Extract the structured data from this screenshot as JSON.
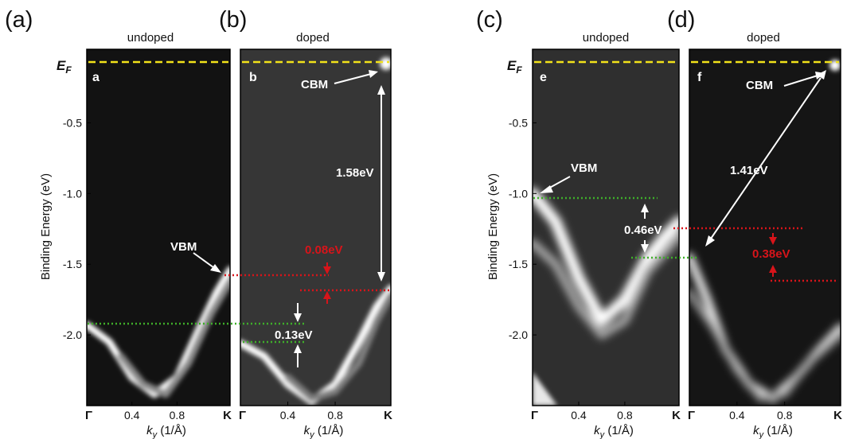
{
  "figure": {
    "panel_labels": [
      "(a)",
      "(b)",
      "(c)",
      "(d)"
    ],
    "ylabel": "Binding Energy (eV)",
    "ef_label": "E",
    "ef_subscript": "F",
    "colors": {
      "ef_line": "#f2e21a",
      "green_marker": "#3fae2a",
      "red_marker": "#d7141a",
      "arrow_white": "#ffffff"
    }
  },
  "chart_data": [
    {
      "type": "heatmap",
      "panel": "(a)",
      "title": "undoped",
      "inset_letter": "a",
      "xlabel": "k",
      "xlabel_sub": "y",
      "xlabel_unit": " (1/Å)",
      "xlim": [
        0,
        1.27
      ],
      "ylim": [
        -2.5,
        0.02
      ],
      "x_ticks": [
        {
          "v": 0,
          "label": "Γ"
        },
        {
          "v": 0.4,
          "label": "0.4"
        },
        {
          "v": 0.8,
          "label": "0.8"
        },
        {
          "v": 1.27,
          "label": "K"
        }
      ],
      "y_ticks": [
        {
          "v": -0.5,
          "label": "-0.5"
        },
        {
          "v": -1.0,
          "label": "-1.0"
        },
        {
          "v": -1.5,
          "label": "-1.5"
        },
        {
          "v": -2.0,
          "label": "-2.0"
        }
      ],
      "bands": [
        {
          "x": [
            0,
            0.2,
            0.4,
            0.6,
            0.8,
            1.0,
            1.15,
            1.27
          ],
          "y": [
            -1.93,
            -2.05,
            -2.3,
            -2.42,
            -2.3,
            -1.95,
            -1.7,
            -1.54
          ],
          "w": 0.05,
          "i": 1.0
        },
        {
          "x": [
            0.3,
            0.5,
            0.7,
            0.9,
            1.1,
            1.27
          ],
          "y": [
            -2.15,
            -2.35,
            -2.42,
            -2.2,
            -1.85,
            -1.62
          ],
          "w": 0.05,
          "i": 0.55
        }
      ],
      "annotations": [
        {
          "text": "VBM",
          "color": "#ffffff"
        }
      ]
    },
    {
      "type": "heatmap",
      "panel": "(b)",
      "title": "doped",
      "inset_letter": "b",
      "xlabel": "k",
      "xlabel_sub": "y",
      "xlabel_unit": " (1/Å)",
      "xlim": [
        0,
        1.27
      ],
      "ylim": [
        -2.5,
        0.02
      ],
      "x_ticks": [
        {
          "v": 0,
          "label": "Γ"
        },
        {
          "v": 0.4,
          "label": "0.4"
        },
        {
          "v": 0.8,
          "label": "0.8"
        },
        {
          "v": 1.27,
          "label": "K"
        }
      ],
      "bands": [
        {
          "x": [
            0,
            0.2,
            0.4,
            0.6,
            0.8,
            1.0,
            1.15,
            1.27
          ],
          "y": [
            -2.06,
            -2.15,
            -2.35,
            -2.47,
            -2.35,
            -2.05,
            -1.8,
            -1.67
          ],
          "w": 0.05,
          "i": 1.0
        },
        {
          "x": [
            0.4,
            0.6,
            0.8,
            1.0,
            1.15,
            1.27
          ],
          "y": [
            -2.3,
            -2.45,
            -2.4,
            -2.2,
            -1.9,
            -1.72
          ],
          "w": 0.05,
          "i": 0.5
        }
      ],
      "annotations": [
        {
          "text": "CBM",
          "color": "#ffffff"
        },
        {
          "text": "1.58eV",
          "color": "#ffffff"
        },
        {
          "text": "0.08eV",
          "color": "#d7141a"
        },
        {
          "text": "0.13eV",
          "color": "#ffffff"
        }
      ]
    },
    {
      "type": "heatmap",
      "panel": "(c)",
      "title": "undoped",
      "inset_letter": "e",
      "xlabel": "k",
      "xlabel_sub": "y",
      "xlabel_unit": " (1/Å)",
      "xlim": [
        0,
        1.27
      ],
      "ylim": [
        -2.5,
        0.02
      ],
      "x_ticks": [
        {
          "v": 0,
          "label": "Γ"
        },
        {
          "v": 0.4,
          "label": "0.4"
        },
        {
          "v": 0.8,
          "label": "0.8"
        },
        {
          "v": 1.27,
          "label": "K"
        }
      ],
      "y_ticks": [
        {
          "v": -0.5,
          "label": "-0.5"
        },
        {
          "v": -1.0,
          "label": "-1.0"
        },
        {
          "v": -1.5,
          "label": "-1.5"
        },
        {
          "v": -2.0,
          "label": "-2.0"
        }
      ],
      "bands": [
        {
          "x": [
            0,
            0.2,
            0.4,
            0.6,
            0.8,
            1.0,
            1.15,
            1.27
          ],
          "y": [
            -1.0,
            -1.2,
            -1.6,
            -1.9,
            -1.75,
            -1.45,
            -1.3,
            -1.2
          ],
          "w": 0.08,
          "i": 1.0
        },
        {
          "x": [
            0,
            0.2,
            0.4,
            0.6,
            0.8,
            1.0,
            1.27
          ],
          "y": [
            -1.35,
            -1.5,
            -1.8,
            -2.0,
            -1.9,
            -1.55,
            -1.3
          ],
          "w": 0.06,
          "i": 0.65
        }
      ],
      "annotations": [
        {
          "text": "VBM",
          "color": "#ffffff"
        },
        {
          "text": "0.46eV",
          "color": "#ffffff"
        }
      ]
    },
    {
      "type": "heatmap",
      "panel": "(d)",
      "title": "doped",
      "inset_letter": "f",
      "xlabel": "k",
      "xlabel_sub": "y",
      "xlabel_unit": " (1/Å)",
      "xlim": [
        0,
        1.27
      ],
      "ylim": [
        -2.5,
        0.02
      ],
      "x_ticks": [
        {
          "v": 0,
          "label": "Γ"
        },
        {
          "v": 0.4,
          "label": "0.4"
        },
        {
          "v": 0.8,
          "label": "0.8"
        },
        {
          "v": 1.27,
          "label": "K"
        }
      ],
      "bands": [
        {
          "x": [
            0,
            0.15,
            0.3,
            0.5,
            0.7,
            0.9,
            1.1,
            1.27
          ],
          "y": [
            -1.45,
            -1.75,
            -2.1,
            -2.35,
            -2.45,
            -2.3,
            -2.1,
            -1.95
          ],
          "w": 0.06,
          "i": 0.9
        },
        {
          "x": [
            0,
            0.2,
            0.4,
            0.6,
            0.8,
            1.0,
            1.27
          ],
          "y": [
            -1.7,
            -1.95,
            -2.25,
            -2.45,
            -2.42,
            -2.2,
            -2.0
          ],
          "w": 0.05,
          "i": 0.6
        }
      ],
      "annotations": [
        {
          "text": "CBM",
          "color": "#ffffff"
        },
        {
          "text": "1.41eV",
          "color": "#ffffff"
        },
        {
          "text": "0.38eV",
          "color": "#d7141a"
        }
      ]
    }
  ]
}
